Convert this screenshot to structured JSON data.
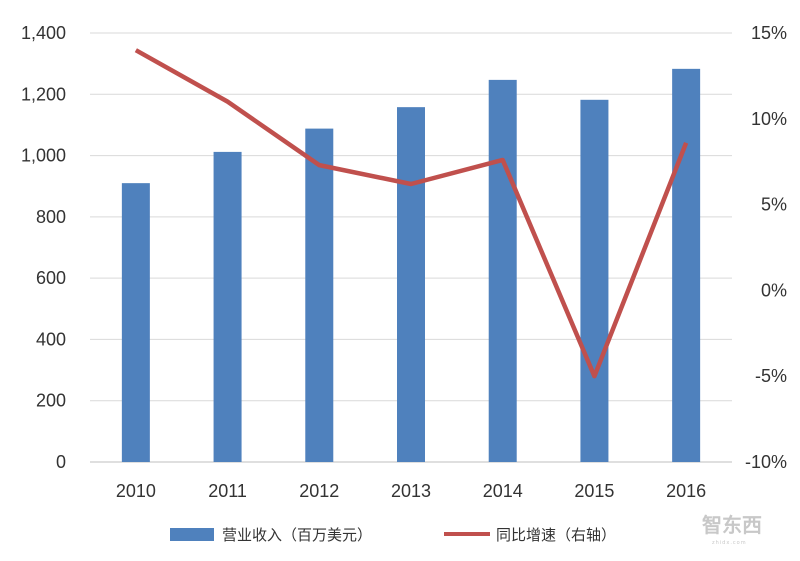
{
  "chart_data": {
    "type": "bar",
    "categories": [
      "2010",
      "2011",
      "2012",
      "2013",
      "2014",
      "2015",
      "2016"
    ],
    "series": [
      {
        "name": "营业收入（百万美元）",
        "type": "bar",
        "axis": "left",
        "color": "#4f81bd",
        "values": [
          910,
          1012,
          1088,
          1158,
          1247,
          1182,
          1283
        ]
      },
      {
        "name": "同比增速（右轴）",
        "type": "line",
        "axis": "right",
        "color": "#c0504d",
        "values": [
          14.0,
          11.0,
          7.3,
          6.2,
          7.6,
          -5.0,
          8.6
        ]
      }
    ],
    "y_left": {
      "lim": [
        0,
        1400
      ],
      "ticks": [
        0,
        200,
        400,
        600,
        800,
        1000,
        1200,
        1400
      ],
      "tick_labels": [
        "0",
        "200",
        "400",
        "600",
        "800",
        "1,000",
        "1,200",
        "1,400"
      ]
    },
    "y_right": {
      "lim": [
        -10,
        15
      ],
      "ticks": [
        -10,
        -5,
        0,
        5,
        10,
        15
      ],
      "tick_labels": [
        "-10%",
        "-5%",
        "0%",
        "5%",
        "10%",
        "15%"
      ]
    },
    "grid": true,
    "legend": "bottom"
  },
  "watermark": {
    "text": "智东西",
    "subtext": "zhidx.com"
  }
}
